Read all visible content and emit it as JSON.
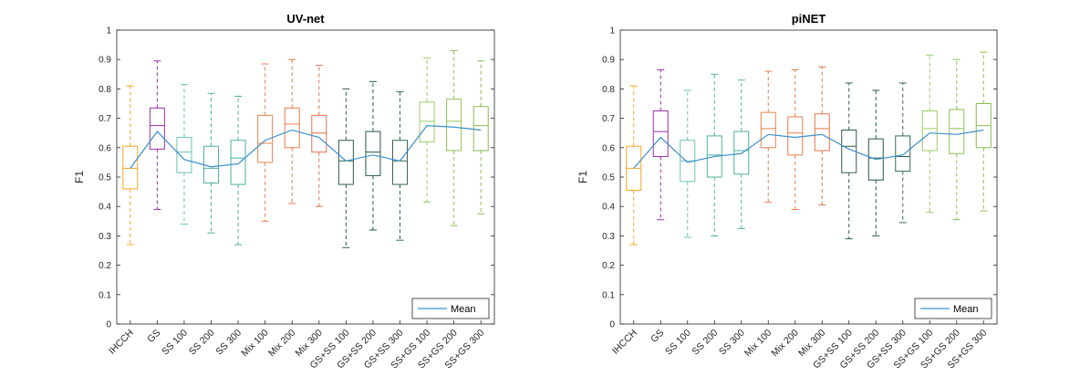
{
  "chart_data": [
    {
      "type": "box",
      "title": "UV-net",
      "xlabel": "",
      "ylabel": "F1",
      "ylim": [
        0,
        1
      ],
      "yticks": [
        0,
        0.1,
        0.2,
        0.3,
        0.4,
        0.5,
        0.6,
        0.7,
        0.8,
        0.9,
        1
      ],
      "ytick_labels": [
        "0",
        "0.1",
        "0.2",
        "0.3",
        "0.4",
        "0.5",
        "0.6",
        "0.7",
        "0.8",
        "0.9",
        "1"
      ],
      "legend": {
        "label": "Mean",
        "location": "bottom-right"
      },
      "categories": [
        "IHCCH",
        "GS",
        "SS 100",
        "SS 200",
        "SS 300",
        "Mix 100",
        "Mix 200",
        "Mix 300",
        "GS+SS 100",
        "GS+SS 200",
        "GS+SS 300",
        "SS+GS 100",
        "SS+GS 200",
        "SS+GS 300"
      ],
      "colors": [
        "#F5A623",
        "#9B2FA6",
        "#6CC3B2",
        "#4FB09D",
        "#4DAF99",
        "#E8804F",
        "#E87D4A",
        "#E0734A",
        "#2F5E45",
        "#245A3A",
        "#336B4B",
        "#9BCB62",
        "#8FBF57",
        "#89BC50"
      ],
      "whisker_low": [
        0.27,
        0.39,
        0.34,
        0.31,
        0.27,
        0.35,
        0.41,
        0.4,
        0.26,
        0.32,
        0.285,
        0.415,
        0.335,
        0.375
      ],
      "q1": [
        0.46,
        0.595,
        0.515,
        0.48,
        0.475,
        0.55,
        0.6,
        0.585,
        0.475,
        0.505,
        0.475,
        0.62,
        0.59,
        0.59
      ],
      "median": [
        0.53,
        0.675,
        0.585,
        0.53,
        0.565,
        0.615,
        0.68,
        0.65,
        0.555,
        0.585,
        0.555,
        0.69,
        0.69,
        0.675
      ],
      "q3": [
        0.605,
        0.735,
        0.635,
        0.605,
        0.625,
        0.71,
        0.735,
        0.71,
        0.625,
        0.655,
        0.625,
        0.755,
        0.765,
        0.74
      ],
      "whisker_high": [
        0.81,
        0.895,
        0.815,
        0.785,
        0.775,
        0.885,
        0.9,
        0.88,
        0.8,
        0.825,
        0.79,
        0.905,
        0.93,
        0.895
      ],
      "mean": [
        0.53,
        0.655,
        0.56,
        0.535,
        0.545,
        0.625,
        0.66,
        0.635,
        0.555,
        0.575,
        0.555,
        0.675,
        0.67,
        0.66
      ],
      "mean_color": "#3A8FCF"
    },
    {
      "type": "box",
      "title": "piNET",
      "xlabel": "",
      "ylabel": "F1",
      "ylim": [
        0,
        1
      ],
      "yticks": [
        0,
        0.1,
        0.2,
        0.3,
        0.4,
        0.5,
        0.6,
        0.7,
        0.8,
        0.9,
        1
      ],
      "ytick_labels": [
        "0",
        "0.1",
        "0.2",
        "0.3",
        "0.4",
        "0.5",
        "0.6",
        "0.7",
        "0.8",
        "0.9",
        "1"
      ],
      "legend": {
        "label": "Mean",
        "location": "bottom-right"
      },
      "categories": [
        "IHCCH",
        "GS",
        "SS 100",
        "SS 200",
        "SS 300",
        "Mix 100",
        "Mix 200",
        "Mix 300",
        "GS+SS 100",
        "GS+SS 200",
        "GS+SS 300",
        "SS+GS 100",
        "SS+GS 200",
        "SS+GS 300"
      ],
      "colors": [
        "#F5A623",
        "#9B2FA6",
        "#6CC3B2",
        "#4FB09D",
        "#4DAF99",
        "#E8804F",
        "#E87D4A",
        "#E0734A",
        "#2F5E45",
        "#245A3A",
        "#336B4B",
        "#9BCB62",
        "#8FBF57",
        "#89BC50"
      ],
      "whisker_low": [
        0.27,
        0.355,
        0.295,
        0.3,
        0.325,
        0.415,
        0.39,
        0.405,
        0.29,
        0.3,
        0.345,
        0.38,
        0.355,
        0.385
      ],
      "q1": [
        0.455,
        0.57,
        0.485,
        0.5,
        0.51,
        0.6,
        0.575,
        0.59,
        0.515,
        0.49,
        0.52,
        0.59,
        0.58,
        0.6
      ],
      "median": [
        0.53,
        0.655,
        0.555,
        0.575,
        0.59,
        0.665,
        0.65,
        0.665,
        0.605,
        0.565,
        0.57,
        0.665,
        0.665,
        0.675
      ],
      "q3": [
        0.605,
        0.725,
        0.625,
        0.64,
        0.655,
        0.72,
        0.705,
        0.715,
        0.66,
        0.63,
        0.64,
        0.725,
        0.73,
        0.75
      ],
      "whisker_high": [
        0.81,
        0.865,
        0.795,
        0.85,
        0.83,
        0.86,
        0.865,
        0.875,
        0.82,
        0.795,
        0.82,
        0.915,
        0.9,
        0.925
      ],
      "mean": [
        0.53,
        0.635,
        0.55,
        0.57,
        0.58,
        0.645,
        0.635,
        0.645,
        0.595,
        0.56,
        0.575,
        0.65,
        0.645,
        0.66
      ],
      "mean_color": "#3A8FCF"
    }
  ]
}
